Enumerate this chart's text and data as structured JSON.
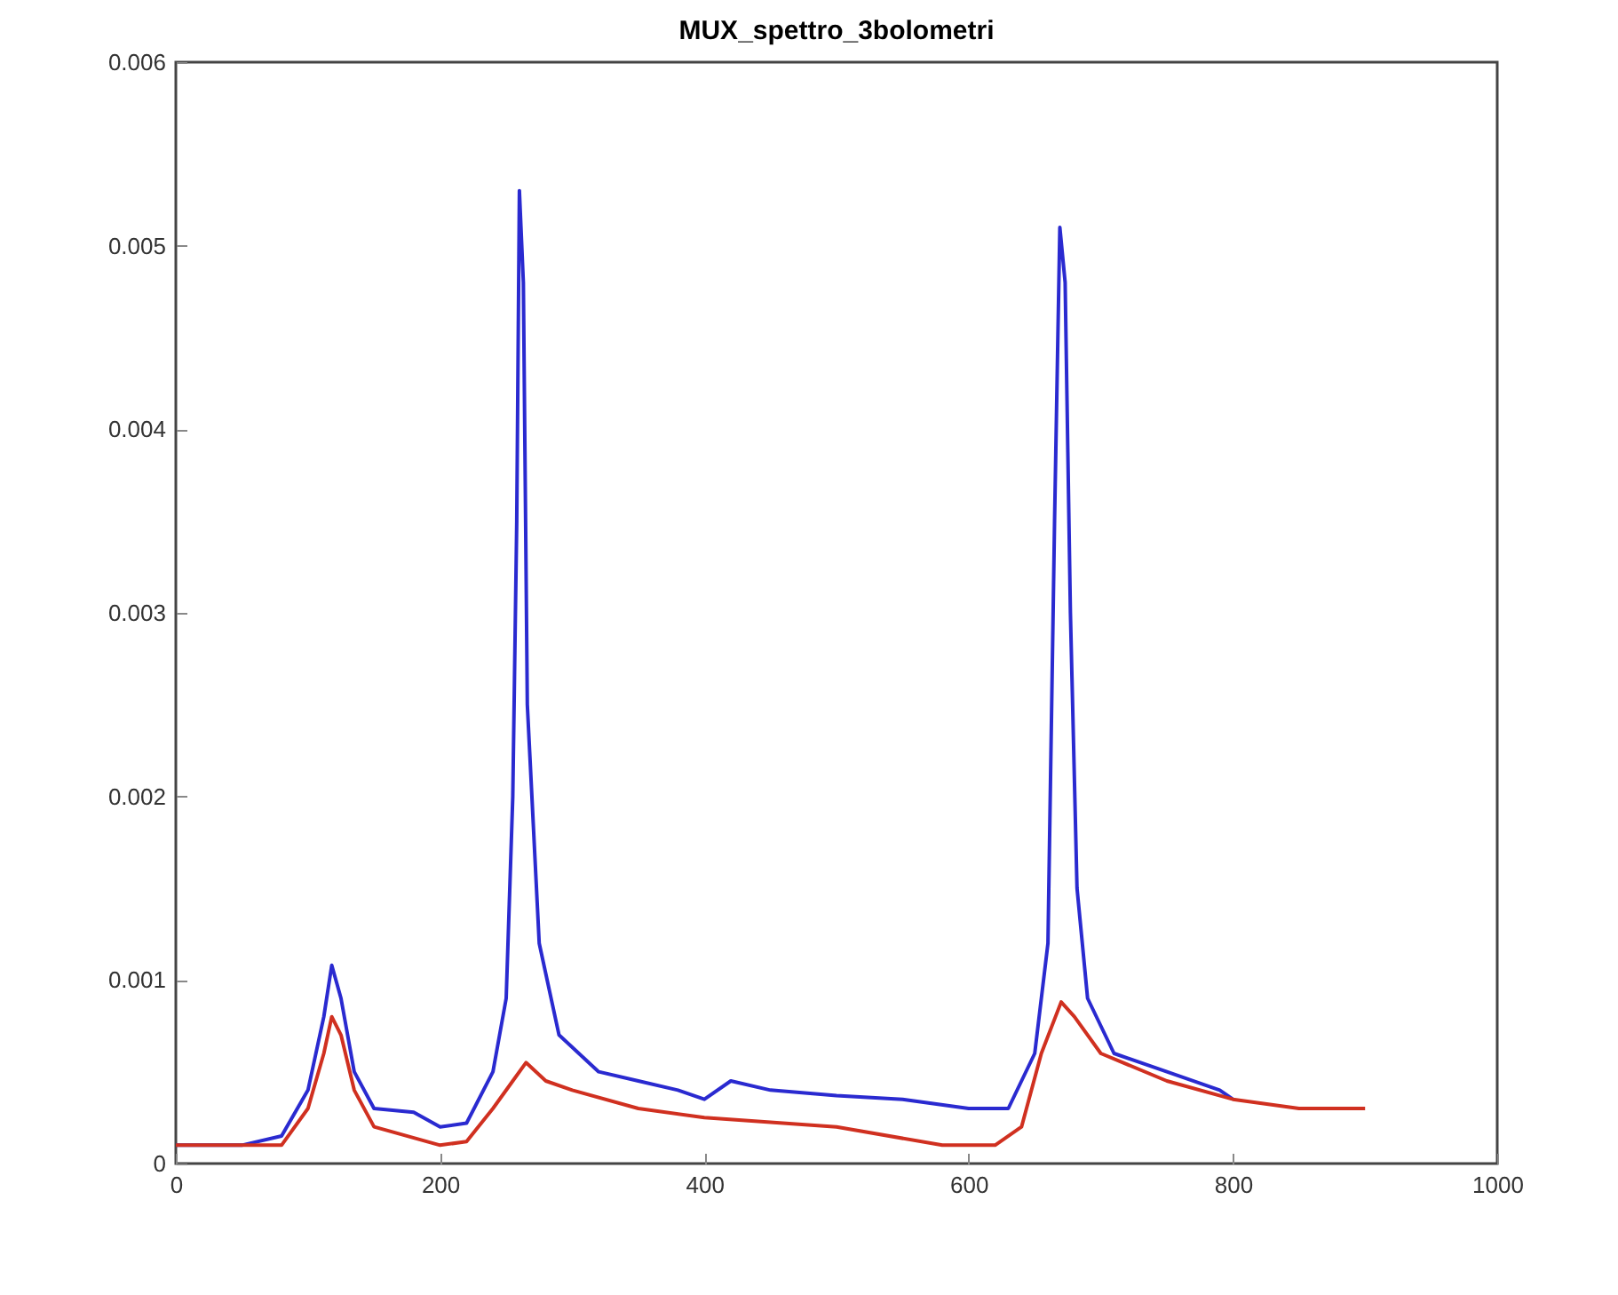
{
  "chart_data": {
    "type": "line",
    "title": "MUX_spettro_3bolometri",
    "xlim": [
      0,
      1000
    ],
    "xticks": [
      0,
      200,
      400,
      600,
      800,
      1000
    ],
    "ylim": [
      0,
      0.006
    ],
    "yticks": [
      0,
      0.001,
      0.002,
      0.003,
      0.004,
      0.005,
      0.006
    ],
    "grid": false,
    "legend": false,
    "line_style": "solid",
    "marker": "none",
    "series": [
      {
        "color": "#2a2ad0",
        "x": [
          0,
          50,
          80,
          100,
          112,
          118,
          125,
          135,
          150,
          180,
          200,
          220,
          240,
          250,
          255,
          258,
          260,
          263,
          266,
          275,
          290,
          320,
          350,
          380,
          400,
          420,
          450,
          500,
          550,
          600,
          630,
          650,
          660,
          665,
          669,
          673,
          677,
          682,
          690,
          710,
          750,
          790,
          800
        ],
        "values": [
          0.0001,
          0.0001,
          0.00015,
          0.0004,
          0.0008,
          0.00108,
          0.0009,
          0.0005,
          0.0003,
          0.00028,
          0.0002,
          0.00022,
          0.0005,
          0.0009,
          0.002,
          0.0035,
          0.0053,
          0.0048,
          0.0025,
          0.0012,
          0.0007,
          0.0005,
          0.00045,
          0.0004,
          0.00035,
          0.00045,
          0.0004,
          0.00037,
          0.00035,
          0.0003,
          0.0003,
          0.0006,
          0.0012,
          0.0035,
          0.0051,
          0.0048,
          0.003,
          0.0015,
          0.0009,
          0.0006,
          0.0005,
          0.0004,
          0.00035
        ]
      },
      {
        "color": "#d03020",
        "x": [
          0,
          50,
          80,
          100,
          112,
          118,
          125,
          135,
          150,
          200,
          220,
          240,
          255,
          265,
          280,
          300,
          350,
          400,
          500,
          580,
          620,
          640,
          655,
          670,
          680,
          700,
          750,
          800,
          850,
          900
        ],
        "values": [
          0.0001,
          0.0001,
          0.0001,
          0.0003,
          0.0006,
          0.0008,
          0.0007,
          0.0004,
          0.0002,
          0.0001,
          0.00012,
          0.0003,
          0.00045,
          0.00055,
          0.00045,
          0.0004,
          0.0003,
          0.00025,
          0.0002,
          0.0001,
          0.0001,
          0.0002,
          0.0006,
          0.00088,
          0.0008,
          0.0006,
          0.00045,
          0.00035,
          0.0003,
          0.0003
        ]
      }
    ]
  }
}
